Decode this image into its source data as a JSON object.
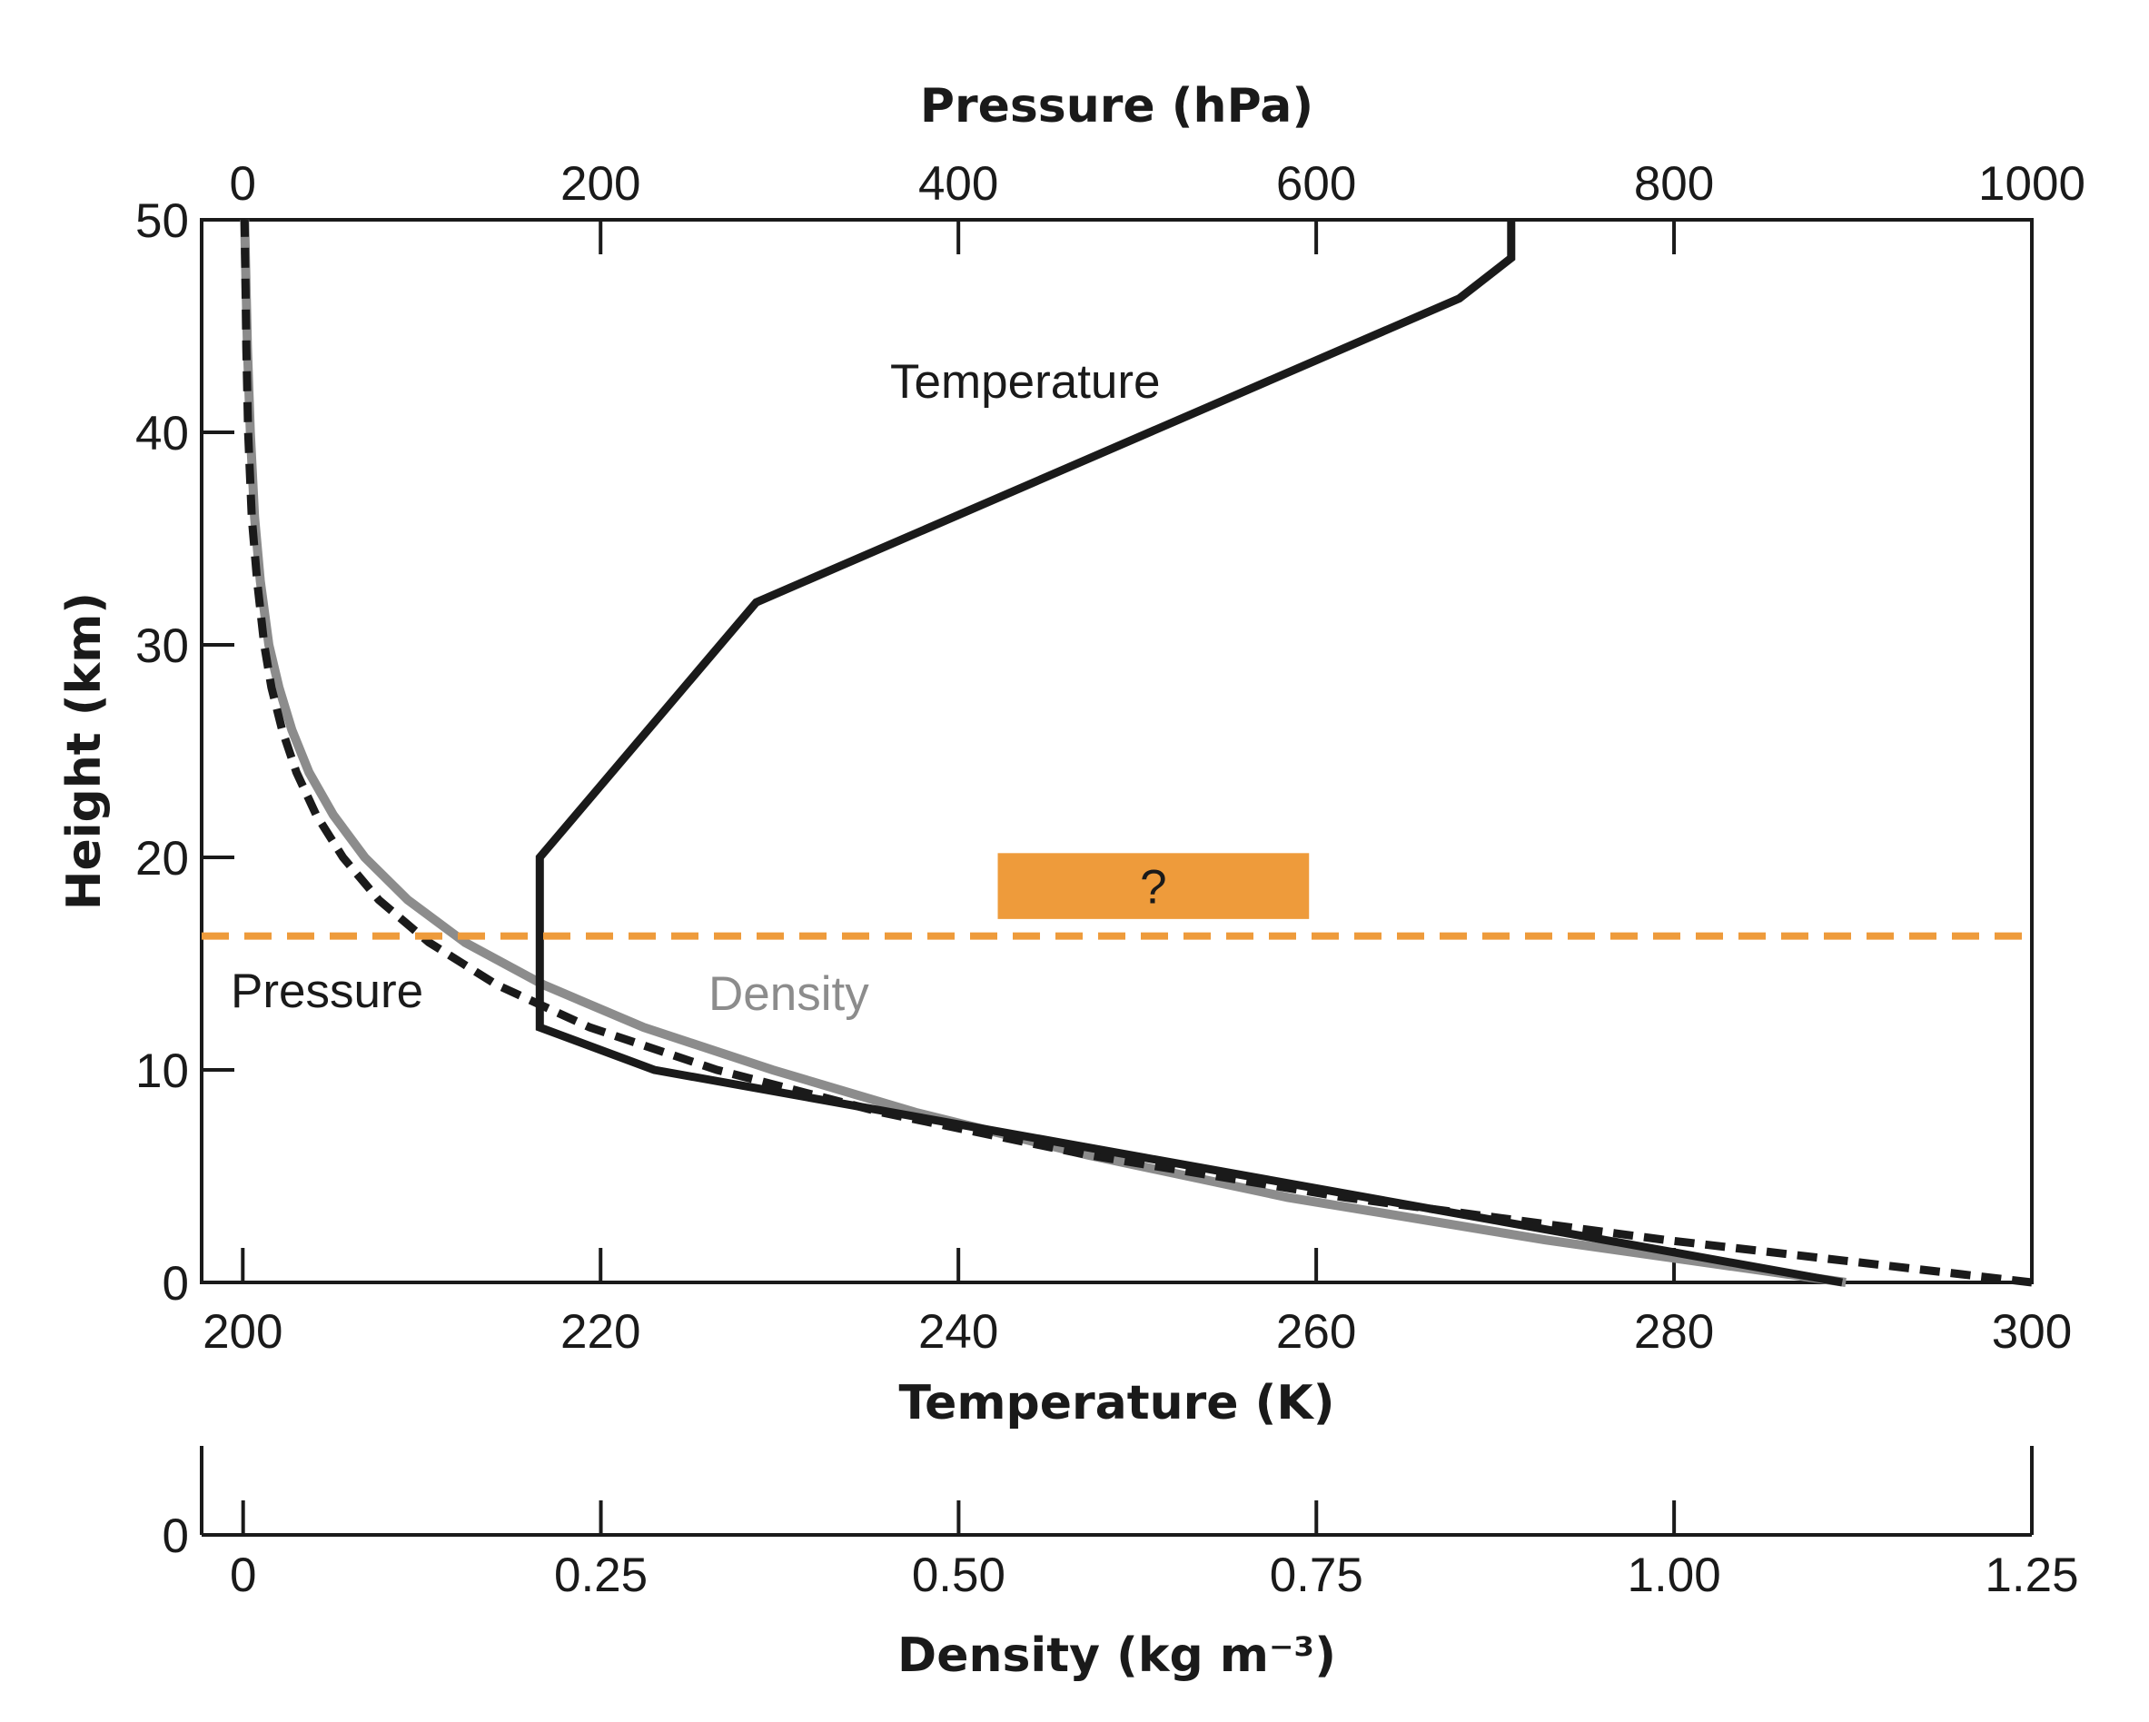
{
  "chart_data": {
    "type": "line",
    "axes": {
      "left": {
        "label": "Height (km)",
        "range": [
          0,
          50
        ],
        "ticks": [
          "0",
          "10",
          "20",
          "30",
          "40",
          "50"
        ]
      },
      "bottom": {
        "label": "Temperature (K)",
        "range": [
          197.7,
          300
        ],
        "ticks": [
          "200",
          "220",
          "240",
          "260",
          "280",
          "300"
        ]
      },
      "top": {
        "label": "Pressure (hPa)",
        "range": [
          -23,
          1000
        ],
        "ticks": [
          "0",
          "200",
          "400",
          "600",
          "800",
          "1000"
        ]
      },
      "density": {
        "label": "Density (kg m⁻³)",
        "range": [
          -0.029,
          1.25
        ],
        "ticks": [
          "0",
          "0.25",
          "0.50",
          "0.75",
          "1.00",
          "1.25"
        ],
        "zero_label": "0"
      }
    },
    "series": [
      {
        "name": "Temperature",
        "axis": "bottom",
        "color": "#1a1a1a",
        "style": "solid",
        "points": [
          [
            289.4,
            0
          ],
          [
            223.0,
            10
          ],
          [
            216.6,
            12
          ],
          [
            216.6,
            20
          ],
          [
            228.7,
            32
          ],
          [
            268.0,
            46.3
          ],
          [
            270.9,
            48.2
          ],
          [
            270.9,
            50
          ]
        ]
      },
      {
        "name": "Pressure",
        "axis": "top",
        "color": "#1a1a1a",
        "style": "dashed",
        "points": [
          [
            1000,
            0
          ],
          [
            795,
            2
          ],
          [
            616,
            4
          ],
          [
            472,
            6
          ],
          [
            357,
            8
          ],
          [
            265,
            10
          ],
          [
            194,
            12
          ],
          [
            142,
            14
          ],
          [
            104,
            16
          ],
          [
            76,
            18
          ],
          [
            56,
            20
          ],
          [
            41,
            22
          ],
          [
            30,
            24
          ],
          [
            22,
            26
          ],
          [
            16,
            28
          ],
          [
            12,
            30
          ],
          [
            8,
            33
          ],
          [
            5,
            36
          ],
          [
            3,
            40
          ],
          [
            2,
            44
          ],
          [
            1,
            50
          ]
        ]
      },
      {
        "name": "Density",
        "axis": "density",
        "color": "#8c8c8c",
        "style": "solid",
        "points": [
          [
            1.12,
            0
          ],
          [
            0.91,
            2
          ],
          [
            0.73,
            4
          ],
          [
            0.59,
            6
          ],
          [
            0.47,
            8
          ],
          [
            0.37,
            10
          ],
          [
            0.28,
            12
          ],
          [
            0.21,
            14
          ],
          [
            0.155,
            16
          ],
          [
            0.115,
            18
          ],
          [
            0.085,
            20
          ],
          [
            0.063,
            22
          ],
          [
            0.046,
            24
          ],
          [
            0.034,
            26
          ],
          [
            0.025,
            28
          ],
          [
            0.018,
            30
          ],
          [
            0.012,
            33
          ],
          [
            0.008,
            36
          ],
          [
            0.005,
            40
          ],
          [
            0.003,
            44
          ],
          [
            0.001,
            50
          ]
        ]
      }
    ],
    "annotations": {
      "reference_height_km": 16.3,
      "reference_color": "#ee9b3b",
      "box_label": "?",
      "box_color": "#ee9b3b",
      "box_extent": {
        "temperature_K": [
          242.2,
          259.6
        ],
        "height_km": [
          17.1,
          20.2
        ]
      }
    },
    "grid": false,
    "legend": "inline labels"
  }
}
